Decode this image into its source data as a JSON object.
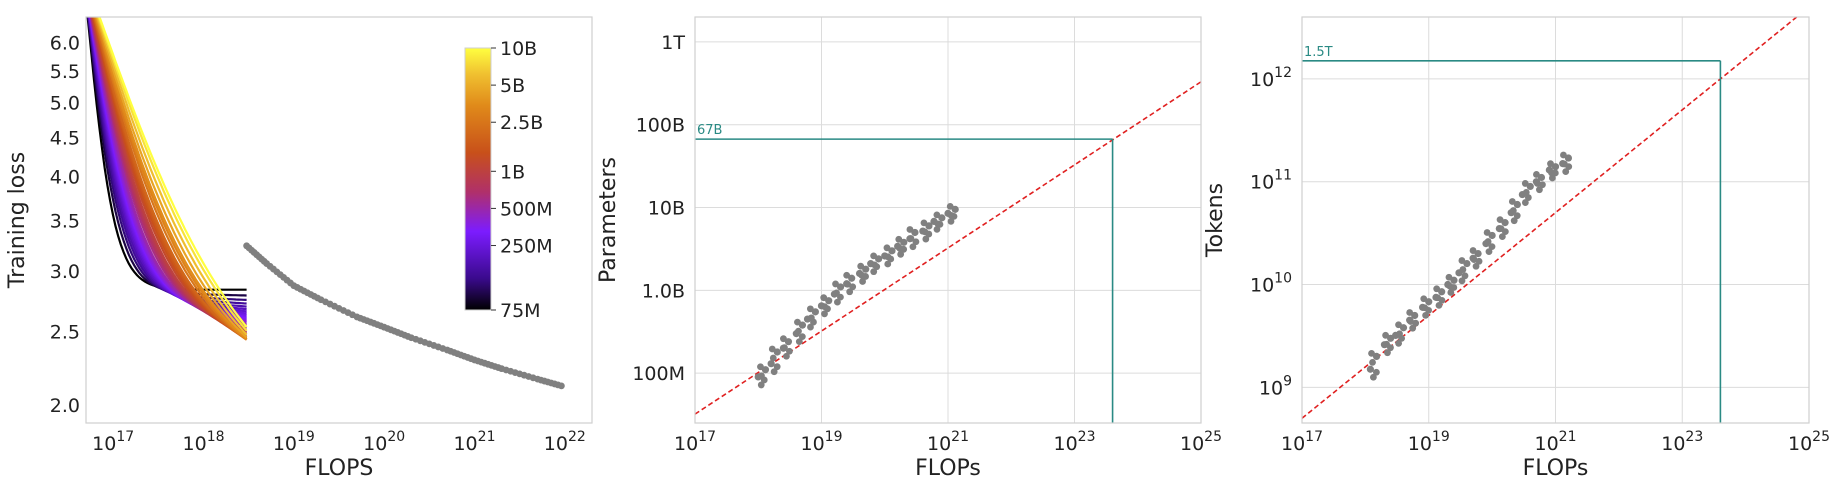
{
  "chart_data": [
    {
      "type": "line",
      "xlabel": "FLOPS",
      "ylabel": "Training loss",
      "xscale": "log",
      "yscale": "log",
      "xlim": [
        5e+16,
        2e+22
      ],
      "ylim": [
        1.9,
        6.5
      ],
      "x_ticks": [
        {
          "exp": "17"
        },
        {
          "exp": "18"
        },
        {
          "exp": "19"
        },
        {
          "exp": "20"
        },
        {
          "exp": "21"
        },
        {
          "exp": "22"
        }
      ],
      "y_ticks": [
        "2.0",
        "2.5",
        "3.0",
        "3.5",
        "4.0",
        "4.5",
        "5.0",
        "5.5",
        "6.0"
      ],
      "y_tick_values": [
        2.0,
        2.5,
        3.0,
        3.5,
        4.0,
        4.5,
        5.0,
        5.5,
        6.0
      ],
      "grid": false,
      "colorbar": {
        "colormap": "gnuplot",
        "labels": [
          "10B",
          "5B",
          "2.5B",
          "1B",
          "500M",
          "250M",
          "75M"
        ],
        "label_values": [
          10000000000.0,
          5000000000.0,
          2500000000.0,
          1000000000.0,
          500000000.0,
          250000000.0,
          75000000.0
        ],
        "range": [
          75000000.0,
          10000000000.0
        ],
        "colors": [
          "#000000",
          "#3a0a8c",
          "#7c1cff",
          "#b0306a",
          "#c8501a",
          "#e08a1a",
          "#f0c030",
          "#ffff40"
        ]
      },
      "series_model_sizes": [
        75000000.0,
        100000000.0,
        125000000.0,
        150000000.0,
        175000000.0,
        200000000.0,
        225000000.0,
        250000000.0,
        275000000.0,
        300000000.0,
        325000000.0,
        350000000.0,
        375000000.0,
        400000000.0,
        450000000.0,
        500000000.0,
        600000000.0,
        700000000.0,
        800000000.0,
        900000000.0,
        1000000000.0,
        1200000000.0,
        1400000000.0,
        1600000000.0,
        1800000000.0,
        2000000000.0,
        2500000000.0,
        3000000000.0,
        3500000000.0,
        4500000000.0,
        6000000000.0,
        8000000000.0,
        10000000000.0
      ],
      "envelope": {
        "x": [
          3e+18,
          5e+18,
          1e+19,
          2e+19,
          5e+19,
          1e+20,
          2e+20,
          5e+20,
          1e+21,
          2e+21,
          5e+21,
          1e+22
        ],
        "y": [
          3.25,
          3.08,
          2.88,
          2.76,
          2.62,
          2.54,
          2.46,
          2.37,
          2.3,
          2.24,
          2.17,
          2.12
        ]
      }
    },
    {
      "type": "scatter",
      "xlabel": "FLOPs",
      "ylabel": "Parameters",
      "xscale": "log",
      "yscale": "log",
      "xlim": [
        1e+17,
        1e+25
      ],
      "ylim": [
        25000000.0,
        2000000000000.0
      ],
      "x_ticks": [
        {
          "exp": "17"
        },
        {
          "exp": "19"
        },
        {
          "exp": "21"
        },
        {
          "exp": "23"
        },
        {
          "exp": "25"
        }
      ],
      "y_ticks": [
        "100M",
        "1.0B",
        "10B",
        "100B",
        "1T"
      ],
      "y_tick_values": [
        100000000.0,
        1000000000.0,
        10000000000.0,
        100000000000.0,
        1000000000000.0
      ],
      "grid": true,
      "points": [
        [
          1e+18,
          90000000.0
        ],
        [
          1.3e+18,
          110000000.0
        ],
        [
          1.6e+18,
          130000000.0
        ],
        [
          2e+18,
          180000000.0
        ],
        [
          2.5e+18,
          200000000.0
        ],
        [
          3e+18,
          240000000.0
        ],
        [
          4e+18,
          300000000.0
        ],
        [
          5e+18,
          380000000.0
        ],
        [
          6e+18,
          450000000.0
        ],
        [
          8e+18,
          550000000.0
        ],
        [
          1e+19,
          650000000.0
        ],
        [
          1.3e+19,
          750000000.0
        ],
        [
          1.6e+19,
          900000000.0
        ],
        [
          2e+19,
          1100000000.0
        ],
        [
          2.5e+19,
          1200000000.0
        ],
        [
          3e+19,
          1400000000.0
        ],
        [
          4e+19,
          1600000000.0
        ],
        [
          5e+19,
          1800000000.0
        ],
        [
          6e+19,
          2100000000.0
        ],
        [
          8e+19,
          2400000000.0
        ],
        [
          1e+20,
          2600000000.0
        ],
        [
          1.3e+20,
          3000000000.0
        ],
        [
          1.6e+20,
          3400000000.0
        ],
        [
          2e+20,
          3800000000.0
        ],
        [
          2.5e+20,
          4200000000.0
        ],
        [
          3e+20,
          5000000000.0
        ],
        [
          4e+20,
          5200000000.0
        ],
        [
          5e+20,
          6000000000.0
        ],
        [
          6e+20,
          6800000000.0
        ],
        [
          8e+20,
          7500000000.0
        ],
        [
          1e+21,
          8500000000.0
        ],
        [
          1.3e+21,
          9500000000.0
        ]
      ],
      "fit_line": {
        "x": [
          1e+17,
          1e+25
        ],
        "y": [
          32000000.0,
          330000000000.0
        ]
      },
      "annotation": {
        "label": "67B",
        "x": 4e+23,
        "y": 67000000000.0
      }
    },
    {
      "type": "scatter",
      "xlabel": "FLOPs",
      "ylabel": "Tokens",
      "xscale": "log",
      "yscale": "log",
      "xlim": [
        1e+17,
        1e+25
      ],
      "ylim": [
        450000000.0,
        4000000000000.0
      ],
      "x_ticks": [
        {
          "exp": "17"
        },
        {
          "exp": "19"
        },
        {
          "exp": "21"
        },
        {
          "exp": "23"
        },
        {
          "exp": "25"
        }
      ],
      "y_ticks": [
        {
          "exp": "9"
        },
        {
          "exp": "10"
        },
        {
          "exp": "11"
        },
        {
          "exp": "12"
        }
      ],
      "y_tick_values": [
        1000000000.0,
        10000000000.0,
        100000000000.0,
        1000000000000.0
      ],
      "grid": true,
      "points": [
        [
          1.2e+18,
          1500000000.0
        ],
        [
          1.5e+18,
          2000000000.0
        ],
        [
          2e+18,
          2600000000.0
        ],
        [
          2.5e+18,
          3000000000.0
        ],
        [
          3e+18,
          3200000000.0
        ],
        [
          4e+18,
          3800000000.0
        ],
        [
          5e+18,
          4500000000.0
        ],
        [
          6e+18,
          5000000000.0
        ],
        [
          8e+18,
          6000000000.0
        ],
        [
          1e+19,
          6800000000.0
        ],
        [
          1.3e+19,
          7500000000.0
        ],
        [
          1.6e+19,
          8500000000.0
        ],
        [
          2e+19,
          10000000000.0
        ],
        [
          2.5e+19,
          11000000000.0
        ],
        [
          3e+19,
          13000000000.0
        ],
        [
          4e+19,
          16000000000.0
        ],
        [
          5e+19,
          18000000000.0
        ],
        [
          6e+19,
          20000000000.0
        ],
        [
          8e+19,
          25000000000.0
        ],
        [
          1e+20,
          30000000000.0
        ],
        [
          1.3e+20,
          35000000000.0
        ],
        [
          1.6e+20,
          40000000000.0
        ],
        [
          2e+20,
          50000000000.0
        ],
        [
          2.5e+20,
          60000000000.0
        ],
        [
          3e+20,
          75000000000.0
        ],
        [
          4e+20,
          90000000000.0
        ],
        [
          5e+20,
          100000000000.0
        ],
        [
          6e+20,
          110000000000.0
        ],
        [
          8e+20,
          130000000000.0
        ],
        [
          1e+21,
          140000000000.0
        ],
        [
          1.3e+21,
          150000000000.0
        ],
        [
          1.6e+21,
          170000000000.0
        ]
      ],
      "fit_line": {
        "x": [
          1e+17,
          1e+25
        ],
        "y": [
          500000000.0,
          5000000000000.0
        ]
      },
      "annotation": {
        "label": "1.5T",
        "x": 4e+23,
        "y": 1500000000000.0
      }
    }
  ],
  "colors": {
    "scatter": "#808080",
    "fit": "#e02020",
    "annotation": "#2a8a84",
    "frame": "#cfcfcf",
    "grid": "#dcdcdc"
  }
}
